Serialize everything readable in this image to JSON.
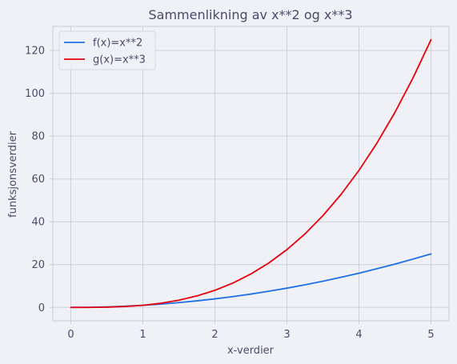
{
  "chart_data": {
    "type": "line",
    "title": "Sammenlikning av x**2 og x**3",
    "xlabel": "x-verdier",
    "ylabel": "funksjonsverdier",
    "xlim": [
      -0.25,
      5.25
    ],
    "ylim": [
      -6.25,
      131.25
    ],
    "xticks": [
      0,
      1,
      2,
      3,
      4,
      5
    ],
    "yticks": [
      0,
      20,
      40,
      60,
      80,
      100,
      120
    ],
    "grid": true,
    "legend_position": "top-left",
    "series": [
      {
        "name": "f(x)=x**2",
        "color": "#1f6fe5",
        "x": [
          0,
          0.25,
          0.5,
          0.75,
          1,
          1.25,
          1.5,
          1.75,
          2,
          2.25,
          2.5,
          2.75,
          3,
          3.25,
          3.5,
          3.75,
          4,
          4.25,
          4.5,
          4.75,
          5
        ],
        "y": [
          0,
          0.0625,
          0.25,
          0.5625,
          1,
          1.5625,
          2.25,
          3.0625,
          4,
          5.0625,
          6.25,
          7.5625,
          9,
          10.5625,
          12.25,
          14.0625,
          16,
          18.0625,
          20.25,
          22.5625,
          25
        ]
      },
      {
        "name": "g(x)=x**3",
        "color": "#e8000b",
        "x": [
          0,
          0.25,
          0.5,
          0.75,
          1,
          1.25,
          1.5,
          1.75,
          2,
          2.25,
          2.5,
          2.75,
          3,
          3.25,
          3.5,
          3.75,
          4,
          4.25,
          4.5,
          4.75,
          5
        ],
        "y": [
          0,
          0.015625,
          0.125,
          0.421875,
          1,
          1.953125,
          3.375,
          5.359375,
          8,
          11.390625,
          15.625,
          20.796875,
          27,
          34.328125,
          42.875,
          52.734375,
          64,
          76.765625,
          91.125,
          107.171875,
          125
        ]
      }
    ]
  },
  "style": {
    "background": "#f0f1f6",
    "plot_background": "#f0f1f6",
    "grid_color": "#cfd1da",
    "axis_color": "#c9ccd6",
    "text_color": "#4a4a6a"
  }
}
